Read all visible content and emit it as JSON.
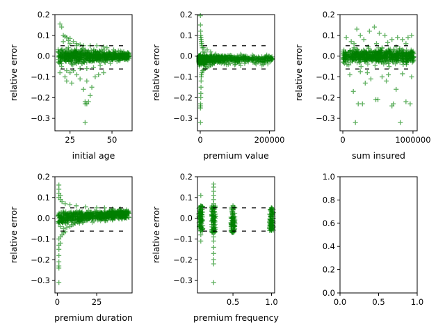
{
  "chart_data": [
    {
      "type": "scatter",
      "xlabel": "initial age",
      "ylabel": "relative error",
      "xlim": [
        16,
        62
      ],
      "ylim": [
        -0.36,
        0.2
      ],
      "xticks": [
        25,
        50
      ],
      "xtick_labels": [
        "25",
        "50"
      ],
      "yticks": [
        -0.3,
        -0.2,
        -0.1,
        0.0,
        0.1,
        0.2
      ],
      "ytick_labels": [
        "−0.3",
        "−0.2",
        "−0.1",
        "0.0",
        "0.1",
        "0.2"
      ],
      "thresholds": {
        "upper": 0.05,
        "lower": -0.062
      },
      "marker": "+",
      "color": "#008000",
      "points": [
        [
          19,
          0.155
        ],
        [
          20,
          0.14
        ],
        [
          21,
          0.1
        ],
        [
          22,
          0.095
        ],
        [
          23,
          0.09
        ],
        [
          25,
          0.085
        ],
        [
          24,
          0.075
        ],
        [
          27,
          0.07
        ],
        [
          29,
          0.06
        ],
        [
          31,
          0.055
        ],
        [
          22,
          -0.1
        ],
        [
          23,
          -0.12
        ],
        [
          26,
          -0.13
        ],
        [
          25,
          -0.08
        ],
        [
          29,
          -0.09
        ],
        [
          31,
          -0.11
        ],
        [
          33,
          -0.16
        ],
        [
          35,
          -0.12
        ],
        [
          37,
          -0.19
        ],
        [
          34,
          -0.22
        ],
        [
          34,
          -0.23
        ],
        [
          35,
          -0.23
        ],
        [
          36,
          -0.22
        ],
        [
          34,
          -0.32
        ],
        [
          38,
          -0.15
        ],
        [
          40,
          -0.1
        ],
        [
          42,
          -0.09
        ],
        [
          45,
          -0.08
        ],
        [
          20,
          -0.05
        ],
        [
          18,
          0.02
        ],
        [
          20,
          0.03
        ],
        [
          22,
          -0.02
        ],
        [
          24,
          0.04
        ],
        [
          26,
          -0.04
        ],
        [
          28,
          0.02
        ],
        [
          30,
          -0.03
        ],
        [
          32,
          0.03
        ],
        [
          34,
          -0.02
        ],
        [
          36,
          0.025
        ],
        [
          38,
          -0.025
        ],
        [
          40,
          0.02
        ],
        [
          42,
          -0.02
        ],
        [
          44,
          0.03
        ],
        [
          46,
          -0.03
        ],
        [
          48,
          0.02
        ],
        [
          50,
          -0.015
        ],
        [
          52,
          0.015
        ],
        [
          54,
          -0.02
        ],
        [
          56,
          0.01
        ],
        [
          58,
          -0.01
        ],
        [
          60,
          0.01
        ],
        [
          59,
          -0.015
        ],
        [
          57,
          0.02
        ],
        [
          55,
          0.025
        ],
        [
          53,
          -0.025
        ],
        [
          51,
          0.03
        ],
        [
          49,
          -0.035
        ],
        [
          47,
          0.04
        ],
        [
          45,
          0.045
        ],
        [
          43,
          -0.045
        ],
        [
          41,
          0.05
        ],
        [
          39,
          -0.055
        ],
        [
          37,
          0.05
        ],
        [
          35,
          -0.06
        ],
        [
          33,
          0.05
        ],
        [
          31,
          -0.06
        ],
        [
          29,
          0.05
        ],
        [
          27,
          -0.07
        ],
        [
          25,
          0.06
        ],
        [
          23,
          -0.07
        ],
        [
          21,
          0.07
        ],
        [
          19,
          -0.08
        ]
      ]
    },
    {
      "type": "scatter",
      "xlabel": "premium value",
      "ylabel": "relative error",
      "xlim": [
        -8000,
        215000
      ],
      "ylim": [
        -0.36,
        0.2
      ],
      "xticks": [
        0,
        200000
      ],
      "xtick_labels": [
        "0",
        "200000"
      ],
      "yticks": [
        -0.3,
        -0.2,
        -0.1,
        0.0,
        0.1,
        0.2
      ],
      "ytick_labels": [
        "−0.3",
        "−0.2",
        "−0.1",
        "0.0",
        "0.1",
        "0.2"
      ],
      "thresholds": {
        "upper": 0.05,
        "lower": -0.062
      },
      "marker": "+",
      "color": "#008000",
      "points": [
        [
          500,
          0.195
        ],
        [
          800,
          0.15
        ],
        [
          1200,
          0.12
        ],
        [
          1500,
          0.1
        ],
        [
          2000,
          0.09
        ],
        [
          2500,
          0.08
        ],
        [
          3000,
          0.07
        ],
        [
          4000,
          0.06
        ],
        [
          5000,
          0.05
        ],
        [
          6000,
          0.04
        ],
        [
          800,
          -0.25
        ],
        [
          1000,
          -0.23
        ],
        [
          1200,
          -0.24
        ],
        [
          900,
          -0.32
        ],
        [
          1500,
          -0.2
        ],
        [
          1800,
          -0.18
        ],
        [
          2200,
          -0.15
        ],
        [
          2600,
          -0.12
        ],
        [
          3000,
          -0.1
        ],
        [
          3500,
          -0.09
        ],
        [
          5000,
          -0.08
        ],
        [
          7000,
          -0.07
        ],
        [
          10000,
          -0.065
        ],
        [
          15000,
          -0.06
        ],
        [
          20000,
          -0.055
        ],
        [
          25000,
          -0.05
        ],
        [
          30000,
          -0.045
        ],
        [
          35000,
          -0.04
        ],
        [
          40000,
          -0.035
        ],
        [
          50000,
          -0.03
        ],
        [
          60000,
          -0.025
        ],
        [
          70000,
          -0.02
        ],
        [
          80000,
          -0.02
        ],
        [
          90000,
          -0.015
        ],
        [
          100000,
          -0.01
        ],
        [
          110000,
          -0.015
        ],
        [
          120000,
          -0.02
        ],
        [
          130000,
          -0.01
        ],
        [
          140000,
          -0.015
        ],
        [
          150000,
          -0.02
        ],
        [
          160000,
          -0.01
        ],
        [
          175000,
          -0.015
        ],
        [
          190000,
          -0.005
        ],
        [
          205000,
          -0.01
        ],
        [
          10000,
          0.04
        ],
        [
          20000,
          0.03
        ],
        [
          30000,
          0.02
        ],
        [
          45000,
          0.01
        ],
        [
          60000,
          0.0
        ],
        [
          75000,
          -0.005
        ],
        [
          12000,
          -0.02
        ],
        [
          18000,
          0.0
        ],
        [
          25000,
          -0.01
        ],
        [
          8000,
          0.02
        ],
        [
          14000,
          -0.04
        ],
        [
          40000,
          -0.005
        ],
        [
          55000,
          -0.01
        ],
        [
          65000,
          -0.03
        ],
        [
          85000,
          -0.025
        ],
        [
          100000,
          -0.02
        ]
      ]
    },
    {
      "type": "scatter",
      "xlabel": "sum insured",
      "ylabel": "relative error",
      "xlim": [
        -40000,
        1060000
      ],
      "ylim": [
        -0.36,
        0.2
      ],
      "xticks": [
        0,
        1000000
      ],
      "xtick_labels": [
        "0",
        "1000000"
      ],
      "yticks": [
        -0.3,
        -0.2,
        -0.1,
        0.0,
        0.1,
        0.2
      ],
      "ytick_labels": [
        "−0.3",
        "−0.2",
        "−0.1",
        "0.0",
        "0.1",
        "0.2"
      ],
      "thresholds": {
        "upper": 0.05,
        "lower": -0.062
      },
      "marker": "+",
      "color": "#008000",
      "points": [
        [
          50000,
          0.09
        ],
        [
          120000,
          0.07
        ],
        [
          200000,
          0.13
        ],
        [
          250000,
          0.1
        ],
        [
          300000,
          0.08
        ],
        [
          380000,
          0.12
        ],
        [
          450000,
          0.14
        ],
        [
          520000,
          0.11
        ],
        [
          600000,
          0.1
        ],
        [
          700000,
          0.08
        ],
        [
          780000,
          0.09
        ],
        [
          850000,
          0.08
        ],
        [
          930000,
          0.09
        ],
        [
          980000,
          0.1
        ],
        [
          160000,
          0.06
        ],
        [
          480000,
          0.06
        ],
        [
          640000,
          0.065
        ],
        [
          900000,
          0.06
        ],
        [
          100000,
          -0.09
        ],
        [
          150000,
          -0.17
        ],
        [
          180000,
          -0.32
        ],
        [
          220000,
          -0.23
        ],
        [
          280000,
          -0.23
        ],
        [
          320000,
          -0.13
        ],
        [
          400000,
          -0.11
        ],
        [
          470000,
          -0.21
        ],
        [
          500000,
          -0.21
        ],
        [
          560000,
          -0.1
        ],
        [
          620000,
          -0.12
        ],
        [
          700000,
          -0.24
        ],
        [
          720000,
          -0.23
        ],
        [
          760000,
          -0.16
        ],
        [
          820000,
          -0.32
        ],
        [
          900000,
          -0.22
        ],
        [
          960000,
          -0.23
        ],
        [
          980000,
          -0.1
        ],
        [
          650000,
          -0.09
        ],
        [
          350000,
          -0.08
        ],
        [
          250000,
          -0.075
        ],
        [
          850000,
          -0.085
        ],
        [
          40000,
          0.02
        ],
        [
          110000,
          -0.03
        ],
        [
          210000,
          0.03
        ],
        [
          310000,
          -0.02
        ],
        [
          410000,
          0.025
        ],
        [
          510000,
          -0.025
        ],
        [
          610000,
          0.02
        ],
        [
          710000,
          -0.02
        ],
        [
          810000,
          0.03
        ],
        [
          910000,
          -0.03
        ],
        [
          990000,
          0.01
        ],
        [
          60000,
          -0.04
        ],
        [
          160000,
          0.04
        ],
        [
          260000,
          -0.05
        ],
        [
          360000,
          0.045
        ],
        [
          460000,
          -0.045
        ],
        [
          560000,
          0.04
        ],
        [
          660000,
          -0.05
        ],
        [
          760000,
          0.045
        ],
        [
          860000,
          -0.04
        ]
      ]
    },
    {
      "type": "scatter",
      "xlabel": "premium duration",
      "ylabel": "relative error",
      "xlim": [
        -1.5,
        47.5
      ],
      "ylim": [
        -0.36,
        0.2
      ],
      "xticks": [
        0,
        25
      ],
      "xtick_labels": [
        "0",
        "25"
      ],
      "yticks": [
        -0.3,
        -0.2,
        -0.1,
        0.0,
        0.1,
        0.2
      ],
      "ytick_labels": [
        "−0.3",
        "−0.2",
        "−0.1",
        "0.0",
        "0.1",
        "0.2"
      ],
      "thresholds": {
        "upper": 0.05,
        "lower": -0.062
      },
      "marker": "+",
      "color": "#008000",
      "points": [
        [
          1,
          0.16
        ],
        [
          1,
          0.14
        ],
        [
          1,
          0.12
        ],
        [
          2,
          0.11
        ],
        [
          1,
          0.1
        ],
        [
          2,
          0.09
        ],
        [
          3,
          0.08
        ],
        [
          1,
          -0.1
        ],
        [
          1,
          -0.13
        ],
        [
          1,
          -0.15
        ],
        [
          1,
          -0.18
        ],
        [
          1,
          -0.21
        ],
        [
          1,
          -0.23
        ],
        [
          1,
          -0.24
        ],
        [
          1,
          -0.31
        ],
        [
          2,
          -0.12
        ],
        [
          2,
          -0.09
        ],
        [
          3,
          -0.08
        ],
        [
          4,
          -0.07
        ],
        [
          5,
          -0.065
        ],
        [
          5,
          0.07
        ],
        [
          8,
          0.065
        ],
        [
          12,
          0.06
        ],
        [
          18,
          0.055
        ],
        [
          25,
          0.05
        ],
        [
          30,
          0.05
        ],
        [
          35,
          0.045
        ],
        [
          40,
          0.045
        ],
        [
          44,
          0.04
        ],
        [
          45,
          0.035
        ],
        [
          3,
          0.0
        ],
        [
          5,
          0.02
        ],
        [
          7,
          -0.02
        ],
        [
          10,
          0.01
        ],
        [
          12,
          -0.01
        ],
        [
          15,
          0.03
        ],
        [
          18,
          0.0
        ],
        [
          20,
          0.02
        ],
        [
          22,
          0.01
        ],
        [
          25,
          0.03
        ],
        [
          28,
          0.025
        ],
        [
          30,
          0.02
        ],
        [
          33,
          0.03
        ],
        [
          36,
          0.025
        ],
        [
          38,
          0.03
        ],
        [
          41,
          0.035
        ],
        [
          43,
          0.03
        ],
        [
          2,
          -0.04
        ],
        [
          4,
          -0.05
        ],
        [
          6,
          -0.045
        ],
        [
          8,
          -0.04
        ],
        [
          10,
          -0.03
        ],
        [
          13,
          -0.02
        ],
        [
          16,
          -0.01
        ],
        [
          20,
          0.0
        ],
        [
          24,
          0.01
        ],
        [
          27,
          0.015
        ],
        [
          32,
          0.02
        ],
        [
          39,
          0.025
        ],
        [
          45,
          0.03
        ]
      ]
    },
    {
      "type": "scatter",
      "xlabel": "premium frequency",
      "ylabel": "relative error",
      "xlim": [
        0.04,
        1.04
      ],
      "ylim": [
        -0.36,
        0.2
      ],
      "xticks": [
        0.5,
        1.0
      ],
      "xtick_labels": [
        "0.5",
        "1.0"
      ],
      "yticks": [
        -0.3,
        -0.2,
        -0.1,
        0.0,
        0.1,
        0.2
      ],
      "ytick_labels": [
        "−0.3",
        "−0.2",
        "−0.1",
        "0.0",
        "0.1",
        "0.2"
      ],
      "thresholds": {
        "upper": 0.05,
        "lower": -0.062
      },
      "marker": "+",
      "color": "#008000",
      "points": [
        [
          0.083,
          0.11
        ],
        [
          0.083,
          0.06
        ],
        [
          0.083,
          0.04
        ],
        [
          0.083,
          0.02
        ],
        [
          0.083,
          0.0
        ],
        [
          0.083,
          -0.02
        ],
        [
          0.083,
          -0.04
        ],
        [
          0.083,
          -0.06
        ],
        [
          0.083,
          -0.08
        ],
        [
          0.083,
          -0.11
        ],
        [
          0.25,
          0.165
        ],
        [
          0.25,
          0.15
        ],
        [
          0.25,
          0.13
        ],
        [
          0.25,
          0.11
        ],
        [
          0.25,
          0.09
        ],
        [
          0.25,
          0.07
        ],
        [
          0.25,
          0.05
        ],
        [
          0.25,
          0.03
        ],
        [
          0.25,
          0.01
        ],
        [
          0.25,
          -0.01
        ],
        [
          0.25,
          -0.03
        ],
        [
          0.25,
          -0.05
        ],
        [
          0.25,
          -0.07
        ],
        [
          0.25,
          -0.09
        ],
        [
          0.25,
          -0.11
        ],
        [
          0.25,
          -0.14
        ],
        [
          0.25,
          -0.17
        ],
        [
          0.25,
          -0.2
        ],
        [
          0.25,
          -0.22
        ],
        [
          0.25,
          -0.31
        ],
        [
          0.5,
          0.06
        ],
        [
          0.5,
          0.04
        ],
        [
          0.5,
          0.02
        ],
        [
          0.5,
          0.0
        ],
        [
          0.5,
          -0.02
        ],
        [
          0.5,
          -0.04
        ],
        [
          0.5,
          -0.06
        ],
        [
          0.5,
          -0.07
        ],
        [
          1.0,
          0.05
        ],
        [
          1.0,
          0.03
        ],
        [
          1.0,
          0.01
        ],
        [
          1.0,
          -0.01
        ],
        [
          1.0,
          -0.03
        ],
        [
          1.0,
          -0.05
        ],
        [
          1.0,
          -0.06
        ]
      ],
      "bands": [
        {
          "x": 0.083,
          "ymin": -0.065,
          "ymax": 0.06
        },
        {
          "x": 0.25,
          "ymin": -0.07,
          "ymax": 0.06
        },
        {
          "x": 0.5,
          "ymin": -0.07,
          "ymax": 0.055
        },
        {
          "x": 1.0,
          "ymin": -0.06,
          "ymax": 0.05
        }
      ]
    },
    {
      "type": "scatter",
      "xlabel": "",
      "ylabel": "",
      "xlim": [
        0,
        1
      ],
      "ylim": [
        0,
        1
      ],
      "xticks": [
        0.0,
        0.5,
        1.0
      ],
      "xtick_labels": [
        "0.0",
        "0.5",
        "1.0"
      ],
      "yticks": [
        0.0,
        0.2,
        0.4,
        0.6,
        0.8,
        1.0
      ],
      "ytick_labels": [
        "0.0",
        "0.2",
        "0.4",
        "0.6",
        "0.8",
        "1.0"
      ],
      "points": []
    }
  ]
}
